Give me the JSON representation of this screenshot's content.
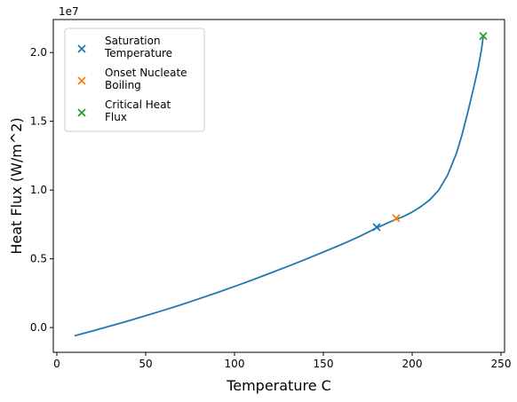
{
  "chart_data": {
    "type": "line",
    "xlabel": "Temperature C",
    "ylabel": "Heat Flux (W/m^2)",
    "y_offset_label": "1e7",
    "xlim": [
      -2,
      252
    ],
    "ylim": [
      -1800000,
      22400000
    ],
    "x_ticks": [
      0,
      50,
      100,
      150,
      200,
      250
    ],
    "x_tick_labels": [
      "0",
      "50",
      "100",
      "150",
      "200",
      "250"
    ],
    "y_ticks": [
      0,
      5000000,
      10000000,
      15000000,
      20000000
    ],
    "y_tick_labels": [
      "0.0",
      "0.5",
      "1.0",
      "1.5",
      "2.0"
    ],
    "grid": false,
    "legend_position": "top-left",
    "series": [
      {
        "kind": "line",
        "color": "#1f77b4",
        "x": [
          10,
          20,
          30,
          40,
          50,
          60,
          70,
          80,
          90,
          100,
          110,
          120,
          130,
          140,
          150,
          160,
          170,
          180,
          190,
          195,
          200,
          205,
          210,
          215,
          220,
          225,
          228,
          231,
          234,
          237,
          239,
          240
        ],
        "y": [
          -600000,
          -250000,
          110000,
          480000,
          860000,
          1250000,
          1660000,
          2090000,
          2530000,
          2990000,
          3460000,
          3950000,
          4450000,
          4960000,
          5490000,
          6030000,
          6600000,
          7250000,
          7830000,
          8070000,
          8400000,
          8800000,
          9300000,
          10000000,
          11100000,
          12700000,
          14000000,
          15500000,
          17100000,
          18800000,
          20200000,
          21200000
        ]
      }
    ],
    "markers": [
      {
        "name": "Saturation\nTemperature",
        "color": "#1f77b4",
        "x": 180,
        "y": 7300000
      },
      {
        "name": "Onset Nucleate\nBoiling",
        "color": "#ff7f0e",
        "x": 191,
        "y": 7950000
      },
      {
        "name": "Critical Heat\nFlux",
        "color": "#2ca02c",
        "x": 240,
        "y": 21200000
      }
    ]
  }
}
